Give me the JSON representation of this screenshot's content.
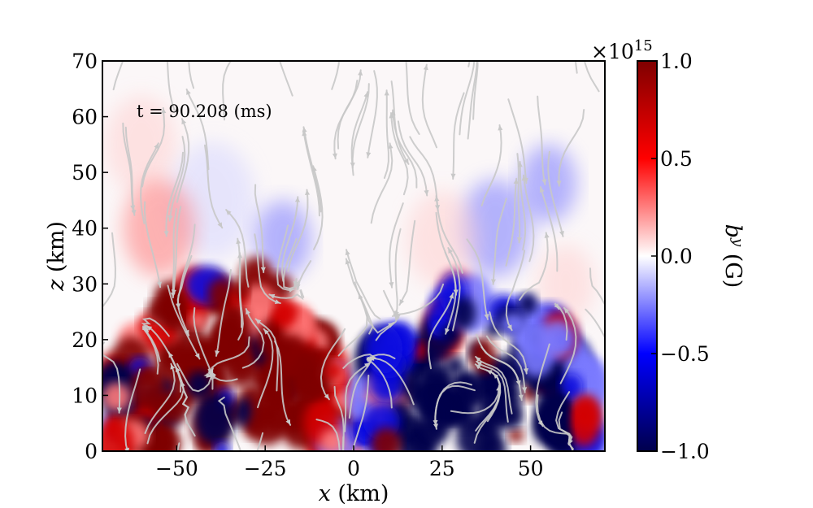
{
  "chart_data": {
    "type": "heatmap",
    "annotation": "t = 90.208 (ms)",
    "xlabel_var": "x",
    "xlabel_unit": " (km)",
    "ylabel_var": "z",
    "ylabel_unit": " (km)",
    "xlim": [
      -71,
      71
    ],
    "ylim": [
      0,
      70
    ],
    "xticks": [
      -50,
      -25,
      0,
      25,
      50
    ],
    "xtick_labels": [
      "−50",
      "−25",
      "0",
      "25",
      "50"
    ],
    "yticks": [
      0,
      10,
      20,
      30,
      40,
      50,
      60,
      70
    ],
    "ytick_labels": [
      "0",
      "10",
      "20",
      "30",
      "40",
      "50",
      "60",
      "70"
    ],
    "colorbar": {
      "label_var": "b",
      "label_sup": "y",
      "label_unit": " (G)",
      "vmin": -1.0,
      "vmax": 1.0,
      "ticks": [
        -1.0,
        -0.5,
        0.0,
        0.5,
        1.0
      ],
      "tick_labels": [
        "−1.0",
        "−0.5",
        "0.0",
        "0.5",
        "1.0"
      ],
      "scale_base": "×10",
      "scale_exp": "15",
      "colormap": "seismic",
      "colors": [
        "#00004c",
        "#0000ff",
        "#ffffff",
        "#ff0000",
        "#7f0000"
      ]
    },
    "regions": [
      {
        "name": "left-lobe",
        "sign": 1,
        "x_range": [
          -68,
          -2
        ],
        "z_range": [
          0,
          33
        ]
      },
      {
        "name": "right-lobe",
        "sign": -1,
        "x_range": [
          2,
          68
        ],
        "z_range": [
          0,
          30
        ]
      }
    ],
    "streamline_color": "#c8c8c8"
  }
}
